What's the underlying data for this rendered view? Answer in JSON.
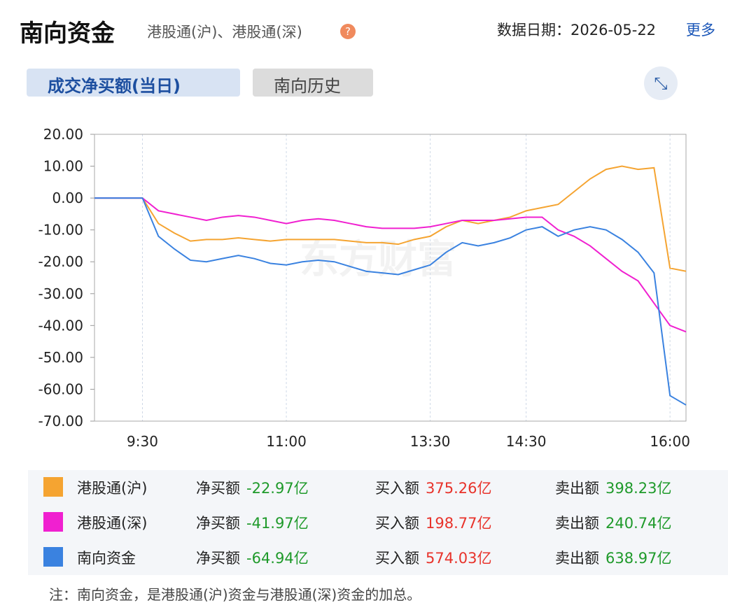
{
  "header": {
    "title": "南向资金",
    "subtitle": "港股通(沪)、港股通(深)",
    "date": "数据日期：2026-05-22",
    "more": "更多"
  },
  "tabs": [
    "成交净买额(当日)",
    "南向历史"
  ],
  "chart_data": {
    "type": "line",
    "watermark": "东方财富",
    "x": [
      0,
      10,
      20,
      30,
      40,
      50,
      60,
      70,
      80,
      90,
      100,
      110,
      120,
      130,
      140,
      150,
      160,
      170,
      180,
      190,
      200,
      210,
      220,
      230,
      240,
      250,
      260,
      270,
      280,
      290,
      300,
      310,
      320,
      330,
      340,
      350,
      360,
      370
    ],
    "xlim": [
      0,
      370
    ],
    "xticks": [
      {
        "value": 30,
        "label": "9:30"
      },
      {
        "value": 120,
        "label": "11:00"
      },
      {
        "value": 210,
        "label": "13:30"
      },
      {
        "value": 270,
        "label": "14:30"
      },
      {
        "value": 360,
        "label": "16:00"
      }
    ],
    "ylim": [
      -70,
      20
    ],
    "yticks": [
      {
        "value": 20,
        "label": "20.00"
      },
      {
        "value": 10,
        "label": "10.00"
      },
      {
        "value": 0,
        "label": "0.00"
      },
      {
        "value": -10,
        "label": "-10.00"
      },
      {
        "value": -20,
        "label": "-20.00"
      },
      {
        "value": -30,
        "label": "-30.00"
      },
      {
        "value": -40,
        "label": "-40.00"
      },
      {
        "value": -50,
        "label": "-50.00"
      },
      {
        "value": -60,
        "label": "-60.00"
      },
      {
        "value": -70,
        "label": "-70.00"
      }
    ],
    "grid": true,
    "series": [
      {
        "name": "港股通(沪)",
        "color": "#f5a431",
        "values": [
          0,
          0,
          0,
          0,
          -8,
          -11,
          -13.5,
          -13,
          -13,
          -12.5,
          -13,
          -13.5,
          -13,
          -13,
          -13,
          -13,
          -13.5,
          -14,
          -14,
          -14.5,
          -13,
          -12,
          -9,
          -7,
          -8,
          -7,
          -6,
          -4,
          -3,
          -2,
          2,
          6,
          9,
          10,
          9,
          9.5,
          -22,
          -22.97
        ]
      },
      {
        "name": "港股通(深)",
        "color": "#f020d0",
        "values": [
          0,
          0,
          0,
          0,
          -4,
          -5,
          -6,
          -7,
          -6,
          -5.5,
          -6,
          -7,
          -8,
          -7,
          -6.5,
          -7,
          -8,
          -9,
          -9.5,
          -9.5,
          -9.5,
          -9,
          -8,
          -7,
          -7,
          -7,
          -6.5,
          -6,
          -6,
          -10,
          -12,
          -15,
          -19,
          -23,
          -26,
          -33,
          -40,
          -41.97
        ]
      },
      {
        "name": "南向资金",
        "color": "#3a82e0",
        "values": [
          0,
          0,
          0,
          0,
          -12,
          -16,
          -19.5,
          -20,
          -19,
          -18,
          -19,
          -20.5,
          -21,
          -20,
          -19.5,
          -20,
          -21.5,
          -23,
          -23.5,
          -24,
          -22.5,
          -21,
          -17,
          -14,
          -15,
          -14,
          -12.5,
          -10,
          -9,
          -12,
          -10,
          -9,
          -10,
          -13,
          -17,
          -23.5,
          -62,
          -64.94
        ]
      }
    ],
    "summary": {
      "labels": [
        "净买额",
        "买入额",
        "卖出额"
      ],
      "rows": [
        [
          "-22.97亿",
          "375.26亿",
          "398.23亿"
        ],
        [
          "-41.97亿",
          "198.77亿",
          "240.74亿"
        ],
        [
          "-64.94亿",
          "574.03亿",
          "638.97亿"
        ]
      ]
    }
  },
  "note": "注：南向资金，是港股通(沪)资金与港股通(深)资金的加总。"
}
